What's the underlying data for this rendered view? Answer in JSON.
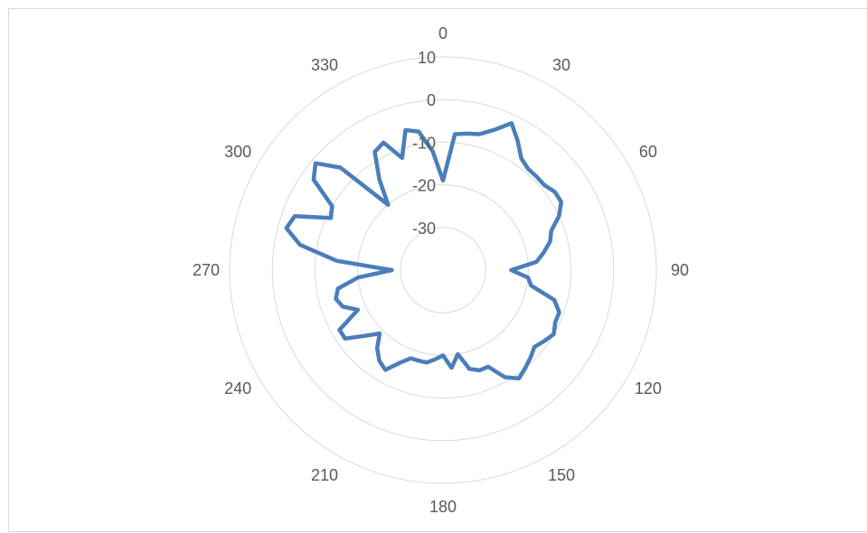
{
  "chart_data": {
    "type": "radar",
    "angle_unit": "degrees",
    "angular_ticks": [
      "0",
      "30",
      "60",
      "90",
      "120",
      "150",
      "180",
      "210",
      "240",
      "270",
      "300",
      "330"
    ],
    "radial_ticks": [
      "-30",
      "-20",
      "-10",
      "0",
      "10"
    ],
    "radial_range": [
      -40,
      10
    ],
    "grid": true,
    "legend": "none",
    "series": [
      {
        "color": "#4a7ebb",
        "points": [
          {
            "angle": 0,
            "r": -19
          },
          {
            "angle": 5,
            "r": -8
          },
          {
            "angle": 10,
            "r": -7.5
          },
          {
            "angle": 15,
            "r": -7
          },
          {
            "angle": 20,
            "r": -5
          },
          {
            "angle": 25,
            "r": -2
          },
          {
            "angle": 30,
            "r": -5
          },
          {
            "angle": 35,
            "r": -8
          },
          {
            "angle": 40,
            "r": -9
          },
          {
            "angle": 45,
            "r": -9
          },
          {
            "angle": 50,
            "r": -9
          },
          {
            "angle": 55,
            "r": -8
          },
          {
            "angle": 60,
            "r": -8
          },
          {
            "angle": 65,
            "r": -10
          },
          {
            "angle": 70,
            "r": -13
          },
          {
            "angle": 75,
            "r": -14
          },
          {
            "angle": 80,
            "r": -16
          },
          {
            "angle": 85,
            "r": -18
          },
          {
            "angle": 90,
            "r": -24
          },
          {
            "angle": 95,
            "r": -20
          },
          {
            "angle": 100,
            "r": -19
          },
          {
            "angle": 105,
            "r": -13
          },
          {
            "angle": 110,
            "r": -11
          },
          {
            "angle": 115,
            "r": -11
          },
          {
            "angle": 120,
            "r": -10
          },
          {
            "angle": 125,
            "r": -11
          },
          {
            "angle": 130,
            "r": -12
          },
          {
            "angle": 135,
            "r": -11
          },
          {
            "angle": 140,
            "r": -10
          },
          {
            "angle": 145,
            "r": -9
          },
          {
            "angle": 150,
            "r": -11
          },
          {
            "angle": 155,
            "r": -15
          },
          {
            "angle": 160,
            "r": -15
          },
          {
            "angle": 165,
            "r": -16
          },
          {
            "angle": 170,
            "r": -20
          },
          {
            "angle": 175,
            "r": -17
          },
          {
            "angle": 180,
            "r": -20
          },
          {
            "angle": 185,
            "r": -19
          },
          {
            "angle": 190,
            "r": -18
          },
          {
            "angle": 195,
            "r": -18
          },
          {
            "angle": 200,
            "r": -18
          },
          {
            "angle": 205,
            "r": -16
          },
          {
            "angle": 210,
            "r": -13
          },
          {
            "angle": 215,
            "r": -14
          },
          {
            "angle": 220,
            "r": -16
          },
          {
            "angle": 225,
            "r": -19
          },
          {
            "angle": 230,
            "r": -16
          },
          {
            "angle": 235,
            "r": -12
          },
          {
            "angle": 240,
            "r": -12
          },
          {
            "angle": 245,
            "r": -18
          },
          {
            "angle": 250,
            "r": -15
          },
          {
            "angle": 255,
            "r": -14
          },
          {
            "angle": 260,
            "r": -15
          },
          {
            "angle": 265,
            "r": -20
          },
          {
            "angle": 270,
            "r": -28
          },
          {
            "angle": 275,
            "r": -15
          },
          {
            "angle": 280,
            "r": -6
          },
          {
            "angle": 285,
            "r": -2
          },
          {
            "angle": 290,
            "r": -3
          },
          {
            "angle": 295,
            "r": -11
          },
          {
            "angle": 300,
            "r": -10
          },
          {
            "angle": 305,
            "r": -3
          },
          {
            "angle": 310,
            "r": -1
          },
          {
            "angle": 315,
            "r": -6
          },
          {
            "angle": 320,
            "r": -20
          },
          {
            "angle": 325,
            "r": -14
          },
          {
            "angle": 330,
            "r": -8
          },
          {
            "angle": 335,
            "r": -7
          },
          {
            "angle": 340,
            "r": -12
          },
          {
            "angle": 345,
            "r": -6
          },
          {
            "angle": 350,
            "r": -7
          },
          {
            "angle": 355,
            "r": -12
          },
          {
            "angle": 360,
            "r": -19
          }
        ]
      }
    ]
  }
}
